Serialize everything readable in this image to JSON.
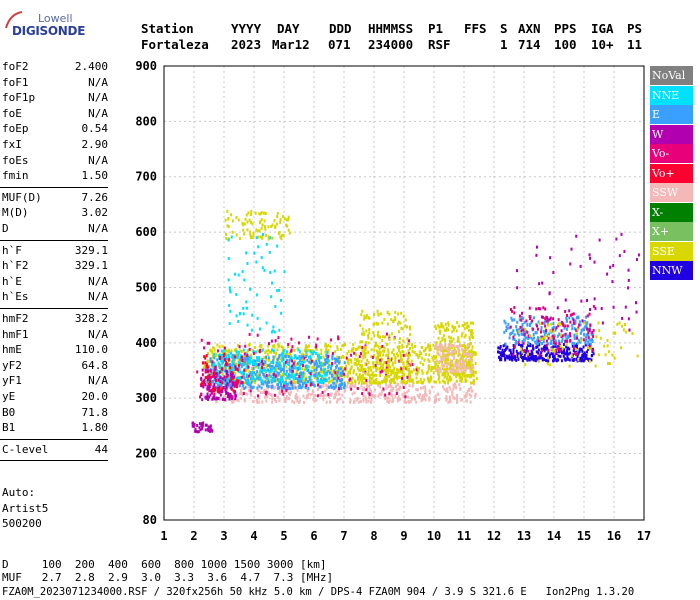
{
  "logo": {
    "top": "Lowell",
    "main": "DIGISONDE"
  },
  "header": {
    "labels": [
      "Station",
      "YYYY",
      "DAY",
      "DDD",
      "HHMMSS",
      "P1",
      "FFS",
      "S",
      "AXN",
      "PPS",
      "IGA",
      "PS"
    ],
    "values": [
      "Fortaleza",
      "2023",
      "Mar12",
      "071",
      "234000",
      "RSF",
      "1",
      "714",
      "100",
      "10+",
      "11"
    ]
  },
  "params_groups": [
    [
      {
        "label": "foF2",
        "value": "2.400"
      },
      {
        "label": "foF1",
        "value": "N/A"
      },
      {
        "label": "foF1p",
        "value": "N/A"
      },
      {
        "label": "foE",
        "value": "N/A"
      },
      {
        "label": "foEp",
        "value": "0.54"
      },
      {
        "label": "fxI",
        "value": "2.90"
      },
      {
        "label": "foEs",
        "value": "N/A"
      },
      {
        "label": "fmin",
        "value": "1.50"
      }
    ],
    [
      {
        "label": "MUF(D)",
        "value": "7.26"
      },
      {
        "label": "M(D)",
        "value": "3.02"
      },
      {
        "label": "D",
        "value": "N/A"
      }
    ],
    [
      {
        "label": "h`F",
        "value": "329.1"
      },
      {
        "label": "h`F2",
        "value": "329.1"
      },
      {
        "label": "h`E",
        "value": "N/A"
      },
      {
        "label": "h`Es",
        "value": "N/A"
      }
    ],
    [
      {
        "label": "hmF2",
        "value": "328.2"
      },
      {
        "label": "hmF1",
        "value": "N/A"
      },
      {
        "label": "hmE",
        "value": "110.0"
      },
      {
        "label": "yF2",
        "value": "64.8"
      },
      {
        "label": "yF1",
        "value": "N/A"
      },
      {
        "label": "yE",
        "value": "20.0"
      },
      {
        "label": "B0",
        "value": "71.8"
      },
      {
        "label": "B1",
        "value": "1.80"
      }
    ],
    [
      {
        "label": "C-level",
        "value": "44"
      }
    ]
  ],
  "auto": {
    "line1": "Auto:",
    "line2": "Artist5",
    "line3": "500200"
  },
  "legend": [
    {
      "label": "NoVal",
      "color": "#808080"
    },
    {
      "label": "NNE",
      "color": "#00e0ff"
    },
    {
      "label": "E",
      "color": "#3aa0ff"
    },
    {
      "label": "W",
      "color": "#b000b0"
    },
    {
      "label": "Vo-",
      "color": "#e8007a"
    },
    {
      "label": "Vo+",
      "color": "#ff0030"
    },
    {
      "label": "SSW",
      "color": "#f4b8b8"
    },
    {
      "label": "X-",
      "color": "#008000"
    },
    {
      "label": "X+",
      "color": "#78c060"
    },
    {
      "label": "SSE",
      "color": "#d8d800"
    },
    {
      "label": "NNW",
      "color": "#2000e0"
    }
  ],
  "bottom": {
    "line1": "D     100  200  400  600  800 1000 1500 3000 [km]",
    "line2": "MUF   2.7  2.8  2.9  3.0  3.3  3.6  4.7  7.3 [MHz]",
    "line3": "FZA0M_2023071234000.RSF / 320fx256h 50 kHz 5.0 km / DPS-4 FZA0M 904 / 3.9 S 321.6 E   Ion2Png 1.3.20"
  },
  "chart_data": {
    "type": "scatter",
    "title": "",
    "xlabel": "",
    "ylabel": "",
    "xlim": [
      1,
      17
    ],
    "ylim": [
      80,
      900
    ],
    "x_ticks": [
      1,
      2,
      3,
      4,
      5,
      6,
      7,
      8,
      9,
      10,
      11,
      12,
      13,
      14,
      15,
      16,
      17
    ],
    "y_ticks": [
      80,
      200,
      300,
      400,
      500,
      600,
      700,
      800,
      900
    ],
    "grid": true,
    "clusters": [
      {
        "series": "SSW",
        "color": "#f4b8b8",
        "x": [
          2.6,
          11.4
        ],
        "y": [
          295,
          330
        ],
        "n": 420
      },
      {
        "series": "SSE",
        "color": "#d8d800",
        "x": [
          2.3,
          11.4
        ],
        "y": [
          330,
          400
        ],
        "n": 900
      },
      {
        "series": "E",
        "color": "#3aa0ff",
        "x": [
          2.4,
          7.0
        ],
        "y": [
          320,
          380
        ],
        "n": 500
      },
      {
        "series": "NNE",
        "color": "#00e0ff",
        "x": [
          2.6,
          6.5
        ],
        "y": [
          330,
          390
        ],
        "n": 250
      },
      {
        "series": "W",
        "color": "#b000b0",
        "x": [
          2.2,
          3.4
        ],
        "y": [
          300,
          360
        ],
        "n": 120
      },
      {
        "series": "Vo-",
        "color": "#e8007a",
        "x": [
          2.0,
          9.4
        ],
        "y": [
          305,
          420
        ],
        "n": 160
      },
      {
        "series": "Vo+",
        "color": "#ff0030",
        "x": [
          2.2,
          3.6
        ],
        "y": [
          315,
          380
        ],
        "n": 60
      },
      {
        "series": "SSE",
        "color": "#d8d800",
        "x": [
          3.0,
          5.2
        ],
        "y": [
          590,
          640
        ],
        "n": 90
      },
      {
        "series": "W",
        "color": "#b000b0",
        "x": [
          1.9,
          2.6
        ],
        "y": [
          242,
          258
        ],
        "n": 35
      },
      {
        "series": "NNE",
        "color": "#00e0ff",
        "x": [
          3.1,
          5.0
        ],
        "y": [
          420,
          600
        ],
        "n": 60
      },
      {
        "series": "SSE",
        "color": "#d8d800",
        "x": [
          7.5,
          9.2
        ],
        "y": [
          330,
          460
        ],
        "n": 200
      },
      {
        "series": "SSE",
        "color": "#d8d800",
        "x": [
          10.0,
          11.3
        ],
        "y": [
          340,
          440
        ],
        "n": 220
      },
      {
        "series": "SSW",
        "color": "#f4b8b8",
        "x": [
          10.0,
          11.3
        ],
        "y": [
          350,
          400
        ],
        "n": 120
      },
      {
        "series": "NNW",
        "color": "#2000e0",
        "x": [
          12.1,
          15.3
        ],
        "y": [
          370,
          400
        ],
        "n": 300
      },
      {
        "series": "E",
        "color": "#3aa0ff",
        "x": [
          12.3,
          15.3
        ],
        "y": [
          400,
          450
        ],
        "n": 220
      },
      {
        "series": "Vo-",
        "color": "#e8007a",
        "x": [
          12.5,
          15.3
        ],
        "y": [
          380,
          470
        ],
        "n": 110
      },
      {
        "series": "SSE",
        "color": "#d8d800",
        "x": [
          12.8,
          16.8
        ],
        "y": [
          360,
          440
        ],
        "n": 70
      },
      {
        "series": "W",
        "color": "#b000b0",
        "x": [
          12.5,
          16.8
        ],
        "y": [
          420,
          600
        ],
        "n": 60
      }
    ]
  }
}
